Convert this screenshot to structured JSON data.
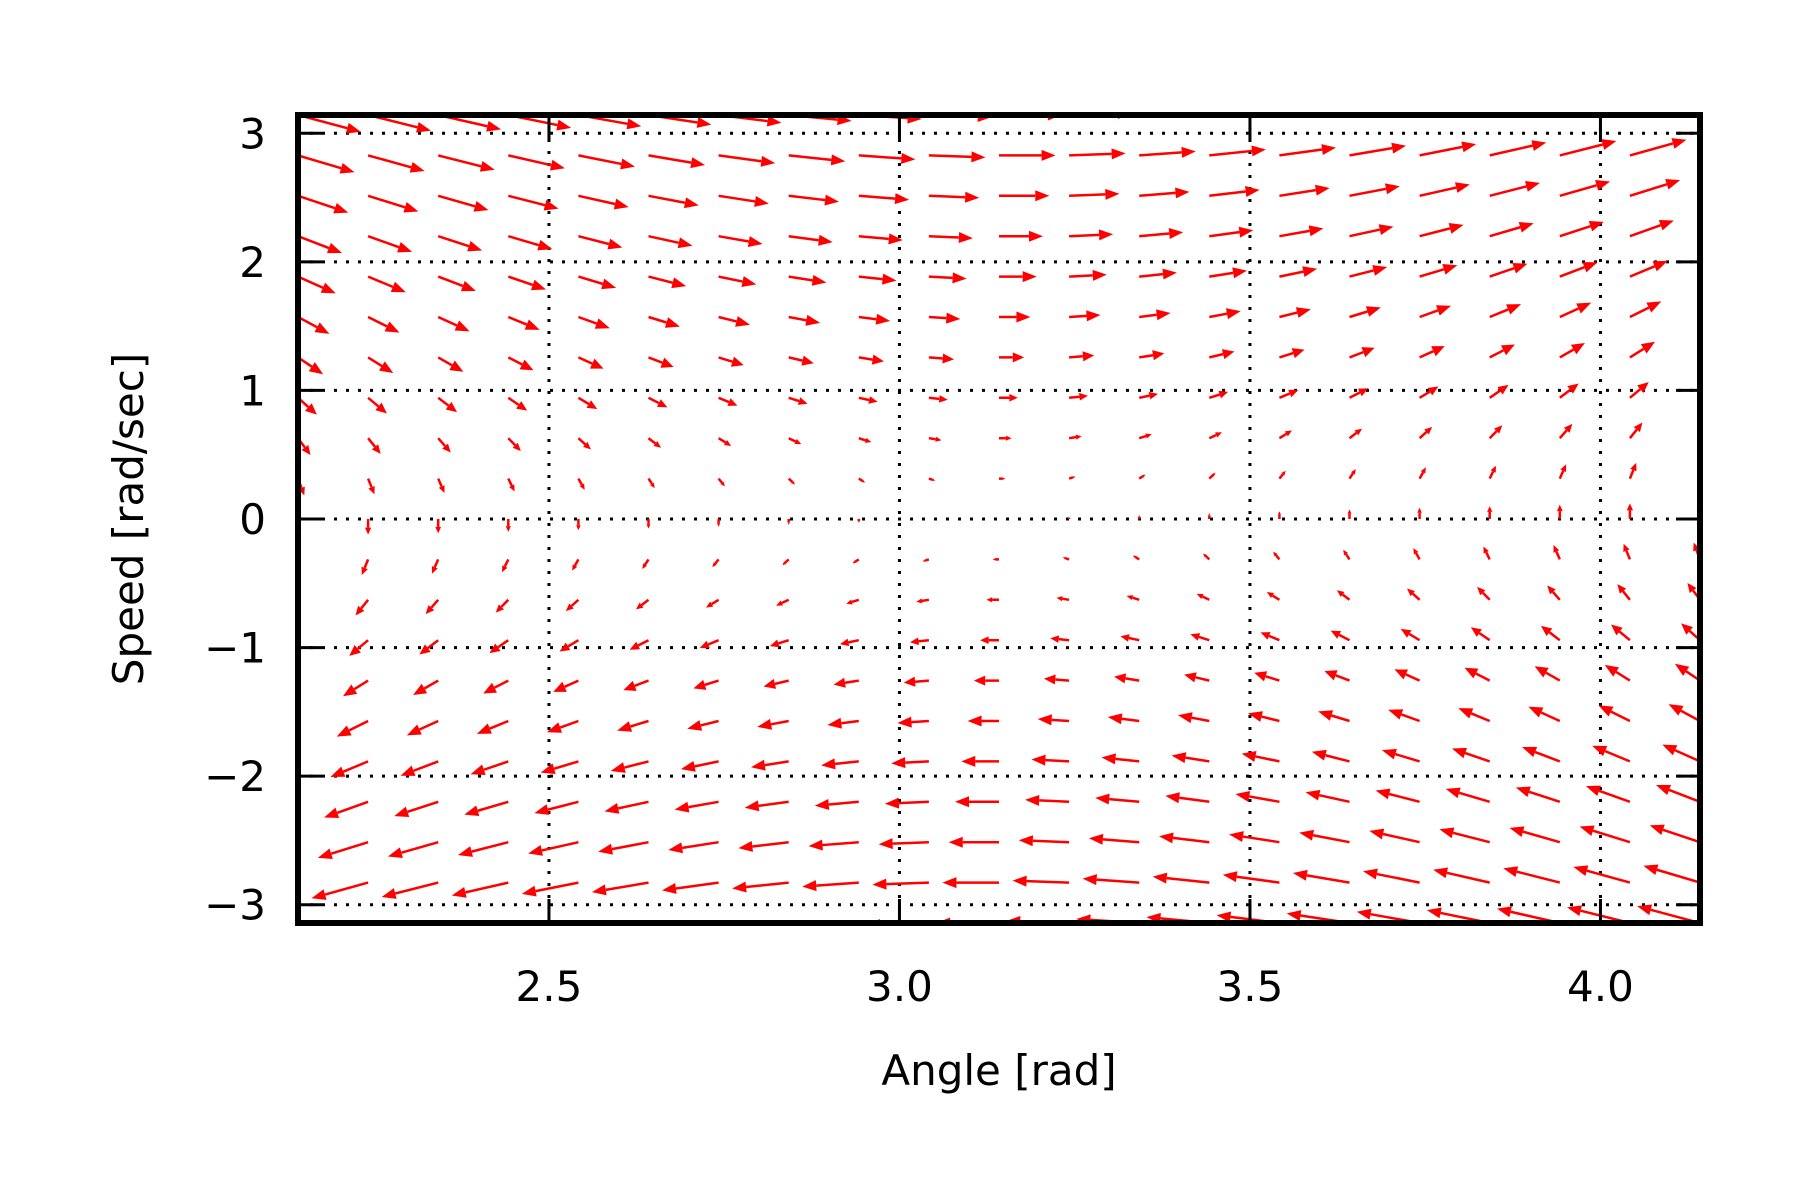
{
  "chart_data": {
    "type": "quiver",
    "title": "",
    "xlabel": "Angle [rad]",
    "ylabel": "Speed [rad/sec]",
    "xlim": [
      2.142,
      4.142
    ],
    "ylim": [
      -3.142,
      3.142
    ],
    "grid": true,
    "grid_style": "dotted",
    "arrow_color": "#ff0000",
    "frame_color": "#000000",
    "x_ticks": [
      2.5,
      3.0,
      3.5,
      4.0
    ],
    "x_tick_labels": [
      "2.5",
      "3.0",
      "3.5",
      "4.0"
    ],
    "y_ticks": [
      -3,
      -2,
      -1,
      0,
      1,
      2,
      3
    ],
    "y_tick_labels": [
      "−3",
      "−2",
      "−1",
      "0",
      "1",
      "2",
      "3"
    ],
    "vector_field": {
      "description_of_field": "pendulum phase field: dx/dt = speed, dspeed/dt = -sin(angle)",
      "x_start": 2.142,
      "x_step": 0.1,
      "x_count": 21,
      "y_start": -3.142,
      "y_step": 0.3142,
      "y_count": 21
    }
  }
}
